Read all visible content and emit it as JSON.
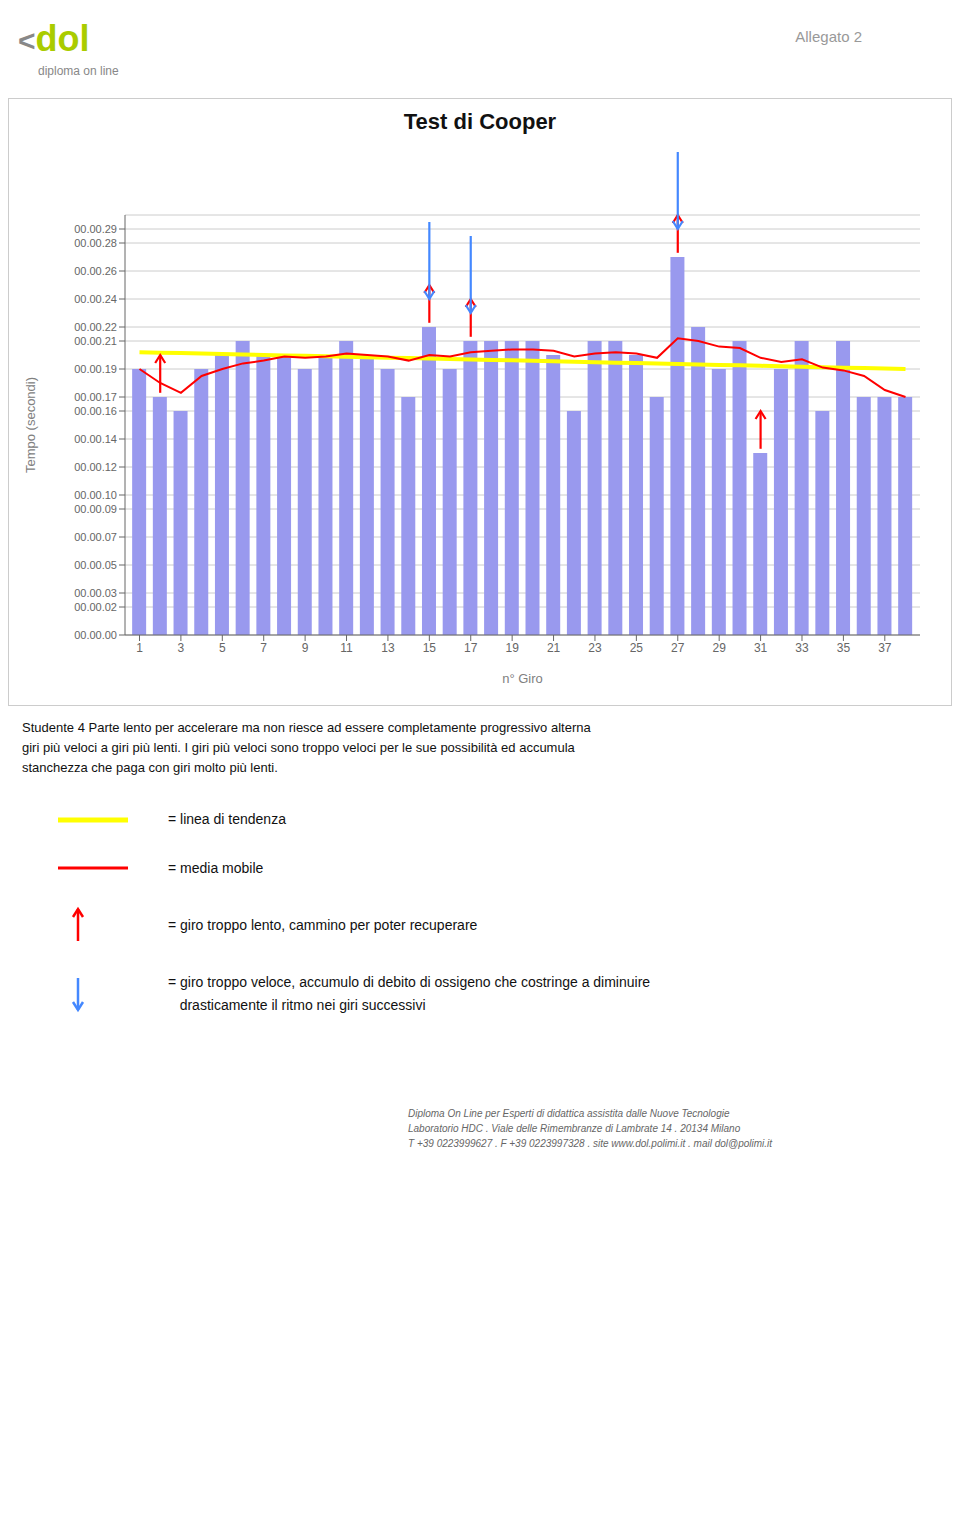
{
  "chart_data": {
    "type": "bar",
    "title": "Test di Cooper",
    "xlabel": "n° Giro",
    "ylabel": "Tempo (secondi)",
    "x": [
      1,
      2,
      3,
      4,
      5,
      6,
      7,
      8,
      9,
      10,
      11,
      12,
      13,
      14,
      15,
      16,
      17,
      18,
      19,
      20,
      21,
      22,
      23,
      24,
      25,
      26,
      27,
      28,
      29,
      30,
      31,
      32,
      33,
      34,
      35,
      36,
      37,
      38
    ],
    "xlim": [
      0.3,
      38.7
    ],
    "xticks": [
      1,
      3,
      5,
      7,
      9,
      11,
      13,
      15,
      17,
      19,
      21,
      23,
      25,
      27,
      29,
      31,
      33,
      35,
      37
    ],
    "ylim": [
      0,
      30
    ],
    "yticks": [
      {
        "value": 0,
        "label": "00.00.00"
      },
      {
        "value": 2,
        "label": "00.00.02"
      },
      {
        "value": 3,
        "label": "00.00.03"
      },
      {
        "value": 5,
        "label": "00.00.05"
      },
      {
        "value": 7,
        "label": "00.00.07"
      },
      {
        "value": 9,
        "label": "00.00.09"
      },
      {
        "value": 10,
        "label": "00.00.10"
      },
      {
        "value": 12,
        "label": "00.00.12"
      },
      {
        "value": 14,
        "label": "00.00.14"
      },
      {
        "value": 16,
        "label": "00.00.16"
      },
      {
        "value": 17,
        "label": "00.00.17"
      },
      {
        "value": 19,
        "label": "00.00.19"
      },
      {
        "value": 21,
        "label": "00.00.21"
      },
      {
        "value": 22,
        "label": "00.00.22"
      },
      {
        "value": 24,
        "label": "00.00.24"
      },
      {
        "value": 26,
        "label": "00.00.26"
      },
      {
        "value": 28,
        "label": "00.00.28"
      },
      {
        "value": 29,
        "label": "00.00.29"
      }
    ],
    "grid": true,
    "legend": "bottom",
    "series": [
      {
        "type": "bar",
        "color": "#9999ee",
        "values": [
          19,
          17,
          16,
          19,
          20,
          21,
          20,
          20,
          19,
          20,
          21,
          20,
          19,
          17,
          22,
          19,
          21,
          21,
          21,
          21,
          20,
          16,
          21,
          21,
          20,
          17,
          27,
          22,
          19,
          21,
          13,
          19,
          21,
          16,
          21,
          17,
          17,
          17
        ]
      },
      {
        "type": "line",
        "name": "= linea di tendenza",
        "color": "yellow",
        "values": [
          20.2,
          20.167568,
          20.135135,
          20.102703,
          20.07027,
          20.037838,
          20.005405,
          19.972973,
          19.940541,
          19.908108,
          19.875676,
          19.843243,
          19.810811,
          19.778378,
          19.745946,
          19.713514,
          19.681081,
          19.648649,
          19.616216,
          19.583784,
          19.551351,
          19.518919,
          19.486486,
          19.454054,
          19.421622,
          19.389189,
          19.356757,
          19.324324,
          19.291892,
          19.259459,
          19.227027,
          19.194595,
          19.162162,
          19.12973,
          19.097297,
          19.064865,
          19.032432,
          19.0
        ]
      },
      {
        "type": "line",
        "name": "= media mobile",
        "color": "red",
        "values": [
          19.0,
          18.0,
          17.3,
          18.5,
          19.0,
          19.4,
          19.6,
          19.9,
          19.8,
          19.9,
          20.1,
          20.0,
          19.9,
          19.6,
          20.0,
          19.9,
          20.2,
          20.3,
          20.4,
          20.4,
          20.3,
          19.9,
          20.1,
          20.2,
          20.1,
          19.8,
          21.2,
          21.0,
          20.6,
          20.5,
          19.8,
          19.5,
          19.7,
          19.1,
          18.9,
          18.5,
          17.5,
          17.0
        ]
      },
      {
        "type": "scatter",
        "marker": "arrow_up",
        "name": "= giro troppo lento, cammino per poter recuperare",
        "color": "red",
        "values": [
          null,
          17,
          null,
          null,
          null,
          null,
          null,
          null,
          null,
          null,
          null,
          null,
          null,
          null,
          22,
          null,
          21,
          null,
          null,
          null,
          null,
          null,
          null,
          null,
          null,
          null,
          27,
          null,
          null,
          null,
          13,
          null,
          null,
          null,
          null,
          null,
          null,
          null
        ]
      },
      {
        "type": "scatter",
        "marker": "arrow_down",
        "name": "= giro troppo veloce, accumulo di debito di ossigeno che costringe a diminuire\n   drasticamente il ritmo nei giri successivi",
        "color": "#4488ff",
        "values": [
          null,
          null,
          null,
          null,
          null,
          null,
          null,
          null,
          null,
          null,
          null,
          null,
          null,
          null,
          22,
          null,
          21,
          null,
          null,
          null,
          null,
          null,
          null,
          null,
          null,
          null,
          27,
          null,
          null,
          null,
          null,
          null,
          null,
          null,
          null,
          null,
          null,
          null
        ]
      }
    ],
    "annotations": [
      "<",
      "dol",
      "diploma on line",
      "Allegato 2",
      "Studente 4 Parte lento per accelerare ma non riesce ad essere completamente progressivo alterna\ngiri più veloci a giri più lenti. I giri più veloci sono troppo veloci per le sue possibilità ed accumula\nstanchezza che paga con giri molto più lenti.",
      "Diploma On Line per Esperti di didattica assistita dalle Nuove Tecnologie\nLaboratorio HDC . Viale delle Rimembranze di Lambrate 14 . 20134 Milano\nT +39 0223999627 . F +39 0223997328 . site www.dol.polimi.it . mail dol@polimi.it"
    ]
  }
}
